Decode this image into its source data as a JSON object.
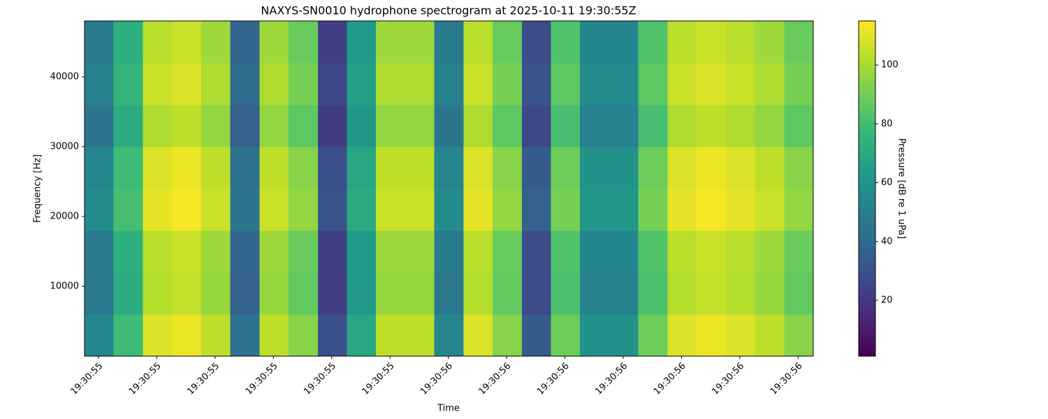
{
  "chart_data": {
    "type": "heatmap",
    "title": "NAXYS-SN0010 hydrophone spectrogram at 2025-10-11 19:30:55Z",
    "x_label": "Time",
    "y_label": "Frequency [Hz]",
    "colorbar_label": "Pressure [dB re 1 uPa]",
    "colormap": "viridis",
    "xlim": [
      55.376,
      56.626
    ],
    "xticks": [
      {
        "value": 55.4,
        "label": "19:30:55"
      },
      {
        "value": 55.5,
        "label": "19:30:55"
      },
      {
        "value": 55.6,
        "label": "19:30:55"
      },
      {
        "value": 55.7,
        "label": "19:30:55"
      },
      {
        "value": 55.8,
        "label": "19:30:55"
      },
      {
        "value": 55.9,
        "label": "19:30:55"
      },
      {
        "value": 56.0,
        "label": "19:30:56"
      },
      {
        "value": 56.1,
        "label": "19:30:56"
      },
      {
        "value": 56.2,
        "label": "19:30:56"
      },
      {
        "value": 56.3,
        "label": "19:30:56"
      },
      {
        "value": 56.4,
        "label": "19:30:56"
      },
      {
        "value": 56.5,
        "label": "19:30:56"
      },
      {
        "value": 56.6,
        "label": "19:30:56"
      }
    ],
    "ylim": [
      0,
      48000
    ],
    "yticks": [
      10000,
      20000,
      30000,
      40000
    ],
    "clim": [
      1,
      115
    ],
    "cticks": [
      20,
      40,
      60,
      80,
      100
    ],
    "xbins": [
      55.376,
      55.426,
      55.476,
      55.526,
      55.576,
      55.626,
      55.676,
      55.726,
      55.776,
      55.826,
      55.876,
      55.926,
      55.976,
      56.026,
      56.076,
      56.126,
      56.176,
      56.226,
      56.276,
      56.326,
      56.376,
      56.426,
      56.476,
      56.526,
      56.576,
      56.626
    ],
    "ybins": [
      0,
      6000,
      12000,
      18000,
      24000,
      30000,
      36000,
      42000,
      48000
    ],
    "values": [
      [
        54,
        79,
        109,
        112,
        104,
        44,
        104,
        94,
        29,
        69,
        104,
        104,
        54,
        109,
        94,
        34,
        89,
        59,
        59,
        89,
        109,
        112,
        109,
        104,
        94
      ],
      [
        47,
        72,
        102,
        105,
        97,
        37,
        97,
        87,
        22,
        62,
        97,
        97,
        47,
        102,
        87,
        27,
        82,
        52,
        52,
        82,
        102,
        105,
        102,
        97,
        87
      ],
      [
        48,
        73,
        103,
        106,
        98,
        38,
        98,
        88,
        23,
        63,
        98,
        98,
        48,
        103,
        88,
        28,
        83,
        53,
        53,
        83,
        103,
        106,
        103,
        98,
        88
      ],
      [
        56,
        81,
        111,
        114,
        106,
        46,
        106,
        96,
        31,
        71,
        106,
        106,
        56,
        111,
        96,
        36,
        91,
        61,
        61,
        91,
        111,
        114,
        111,
        106,
        96
      ],
      [
        54,
        79,
        109,
        112,
        104,
        44,
        104,
        94,
        29,
        69,
        104,
        104,
        54,
        109,
        94,
        34,
        89,
        59,
        59,
        89,
        109,
        112,
        109,
        104,
        94
      ],
      [
        46,
        71,
        101,
        104,
        96,
        36,
        96,
        86,
        21,
        61,
        96,
        96,
        46,
        101,
        86,
        26,
        81,
        51,
        51,
        81,
        101,
        104,
        101,
        96,
        86
      ],
      [
        51,
        76,
        106,
        109,
        101,
        41,
        101,
        91,
        26,
        66,
        101,
        101,
        51,
        106,
        91,
        31,
        86,
        56,
        56,
        86,
        106,
        109,
        106,
        101,
        91
      ],
      [
        48,
        73,
        103,
        106,
        98,
        38,
        98,
        88,
        23,
        63,
        98,
        98,
        48,
        103,
        88,
        28,
        83,
        53,
        53,
        83,
        103,
        106,
        103,
        98,
        88
      ]
    ]
  }
}
